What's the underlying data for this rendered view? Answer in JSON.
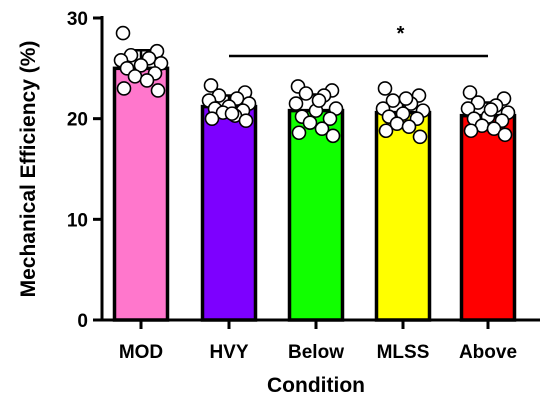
{
  "chart_data": {
    "type": "bar",
    "xlabel": "Condition",
    "ylabel": "Mechanical Efficiency (%)",
    "ylim": [
      0,
      30
    ],
    "yticks": [
      0,
      10,
      20,
      30
    ],
    "grid": false,
    "categories": [
      "MOD",
      "HVY",
      "Below",
      "MLSS",
      "Above"
    ],
    "values": [
      25.0,
      21.2,
      20.8,
      20.6,
      20.3
    ],
    "sd": [
      1.8,
      1.1,
      1.6,
      1.5,
      1.3
    ],
    "colors": [
      "#ff77cc",
      "#7d00ff",
      "#11ff00",
      "#ffff00",
      "#ff0000"
    ],
    "points": [
      [
        28.5,
        26.7,
        26.3,
        26.0,
        25.8,
        25.5,
        25.3,
        25.0,
        24.5,
        24.2,
        23.8,
        23.0,
        22.8
      ],
      [
        23.3,
        22.6,
        22.3,
        22.0,
        21.8,
        21.5,
        21.2,
        21.0,
        20.8,
        20.6,
        20.3,
        20.0,
        19.8,
        20.5
      ],
      [
        23.2,
        22.8,
        22.5,
        22.3,
        21.5,
        21.0,
        20.8,
        20.2,
        20.0,
        19.6,
        19.0,
        18.6,
        18.3,
        21.8
      ],
      [
        23.0,
        22.3,
        21.8,
        21.5,
        21.0,
        20.8,
        20.5,
        20.2,
        20.0,
        19.5,
        19.2,
        18.8,
        18.2,
        22.0
      ],
      [
        22.6,
        22.0,
        21.6,
        21.3,
        21.0,
        20.6,
        20.2,
        20.0,
        19.8,
        19.3,
        19.0,
        18.8,
        18.4,
        20.9
      ]
    ],
    "significance": {
      "label": "*",
      "from": "HVY",
      "to": "Above"
    }
  }
}
